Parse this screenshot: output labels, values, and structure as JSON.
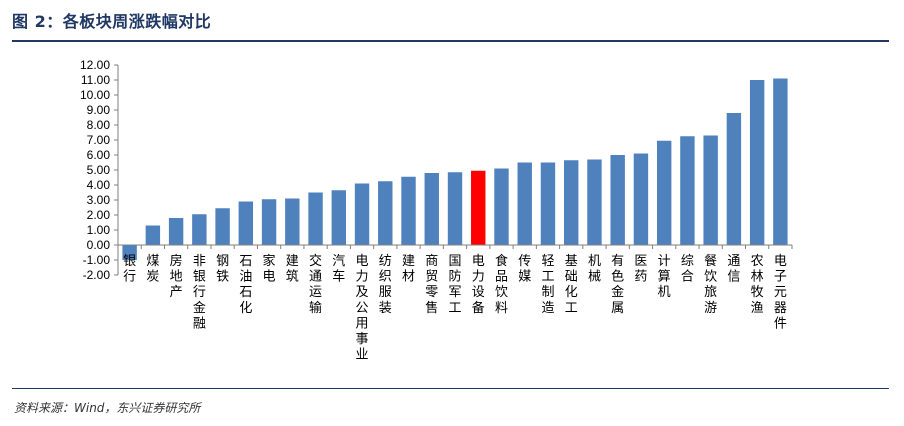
{
  "header": {
    "title": "图 2：各板块周涨跌幅对比"
  },
  "footer": {
    "source": "资料来源：Wind，东兴证券研究所"
  },
  "colors": {
    "bar": "#4f81bd",
    "highlight": "#ff0000",
    "rule": "#1f3864"
  },
  "chart_data": {
    "type": "bar",
    "categories": [
      "银行",
      "煤炭",
      "房地产",
      "非银行金融",
      "钢铁",
      "石油石化",
      "家电",
      "建筑",
      "交通运输",
      "汽车",
      "电力及公用事业",
      "纺织服装",
      "建材",
      "商贸零售",
      "国防军工",
      "电力设备",
      "食品饮料",
      "传媒",
      "轻工制造",
      "基础化工",
      "机械",
      "有色金属",
      "医药",
      "计算机",
      "综合",
      "餐饮旅游",
      "通信",
      "农林牧渔",
      "电子元器件"
    ],
    "values": [
      -1.0,
      1.3,
      1.8,
      2.05,
      2.45,
      2.9,
      3.05,
      3.1,
      3.5,
      3.65,
      4.1,
      4.25,
      4.55,
      4.8,
      4.85,
      4.95,
      5.1,
      5.5,
      5.5,
      5.65,
      5.7,
      6.0,
      6.1,
      6.95,
      7.25,
      7.3,
      8.8,
      11.0,
      11.1
    ],
    "highlight_category": "电力设备",
    "yticks": [
      "12.00",
      "11.00",
      "10.00",
      "9.00",
      "8.00",
      "7.00",
      "6.00",
      "5.00",
      "4.00",
      "3.00",
      "2.00",
      "1.00",
      "0.00",
      "-1.00",
      "-2.00"
    ],
    "ylim": [
      -2,
      12
    ],
    "grid": false,
    "legend": "none"
  }
}
